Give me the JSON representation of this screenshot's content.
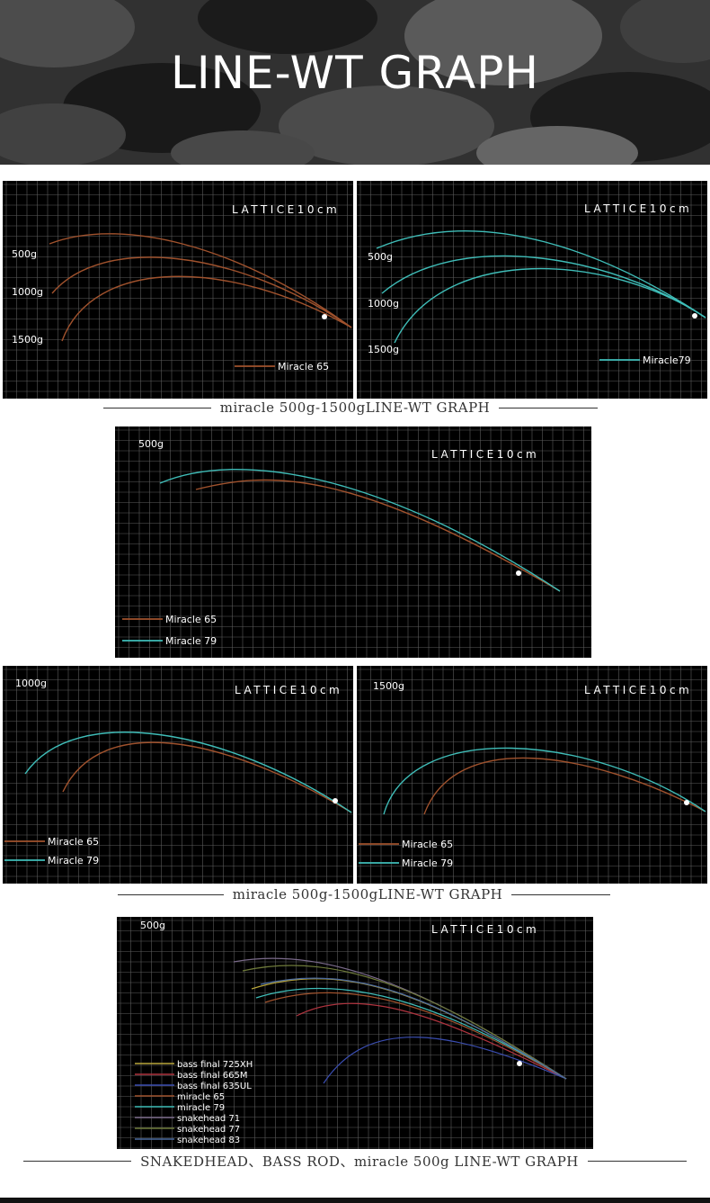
{
  "page_title": "LINE-WT GRAPH",
  "colors": {
    "miracle_65": "#a0522d",
    "miracle_79": "#3fbdb8",
    "bass_final_725XH": "#b8a53a",
    "bass_final_665M": "#b0343f",
    "bass_final_635UL": "#3a4db0",
    "snakehead_71": "#7a6a8a",
    "snakehead_77": "#6e7a3a",
    "snakehead_83": "#4a6aa0"
  },
  "captions": {
    "caption_1": "miracle 500g-1500gLINE-WT GRAPH",
    "caption_2": "miracle 500g-1500gLINE-WT GRAPH",
    "caption_3": "SNAKEDHEAD、BASS ROD、miracle 500g LINE-WT GRAPH"
  },
  "chart_data": [
    {
      "type": "line",
      "grid_label": "LATTICE10cm",
      "load_labels": [
        "500g",
        "1000g",
        "1500g"
      ],
      "series": [
        {
          "name": "Miracle 65",
          "loads_g": [
            500,
            1000,
            1500
          ]
        }
      ]
    },
    {
      "type": "line",
      "grid_label": "LATTICE10cm",
      "load_labels": [
        "500g",
        "1000g",
        "1500g"
      ],
      "series": [
        {
          "name": "Miracle79",
          "loads_g": [
            500,
            1000,
            1500
          ]
        }
      ]
    },
    {
      "type": "line",
      "grid_label": "LATTICE10cm",
      "load_labels": [
        "500g"
      ],
      "series": [
        {
          "name": "Miracle 65",
          "loads_g": [
            500
          ]
        },
        {
          "name": "Miracle 79",
          "loads_g": [
            500
          ]
        }
      ]
    },
    {
      "type": "line",
      "grid_label": "LATTICE10cm",
      "load_labels": [
        "1000g"
      ],
      "series": [
        {
          "name": "Miracle 65",
          "loads_g": [
            1000
          ]
        },
        {
          "name": "Miracle 79",
          "loads_g": [
            1000
          ]
        }
      ]
    },
    {
      "type": "line",
      "grid_label": "LATTICE10cm",
      "load_labels": [
        "1500g"
      ],
      "series": [
        {
          "name": "Miracle 65",
          "loads_g": [
            1500
          ]
        },
        {
          "name": "Miracle 79",
          "loads_g": [
            1500
          ]
        }
      ]
    },
    {
      "type": "line",
      "grid_label": "LATTICE10cm",
      "load_labels": [
        "500g"
      ],
      "series": [
        {
          "name": "bass final 725XH",
          "loads_g": [
            500
          ]
        },
        {
          "name": "bass final 665M",
          "loads_g": [
            500
          ]
        },
        {
          "name": "bass final 635UL",
          "loads_g": [
            500
          ]
        },
        {
          "name": "miracle 65",
          "loads_g": [
            500
          ]
        },
        {
          "name": "miracle 79",
          "loads_g": [
            500
          ]
        },
        {
          "name": "snakehead 71",
          "loads_g": [
            500
          ]
        },
        {
          "name": "snakehead 77",
          "loads_g": [
            500
          ]
        },
        {
          "name": "snakehead 83",
          "loads_g": [
            500
          ]
        }
      ]
    }
  ]
}
